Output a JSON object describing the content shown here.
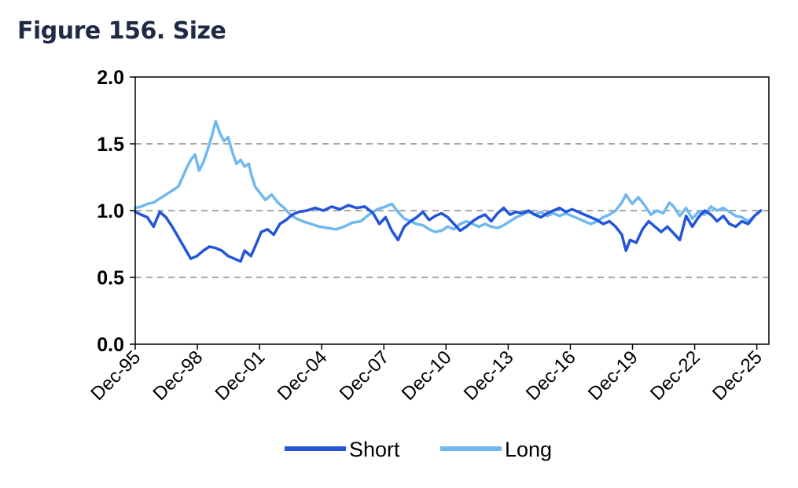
{
  "title": "Figure 156. Size",
  "chart_data": {
    "type": "line",
    "ylim": [
      0,
      2.0
    ],
    "yticks": [
      "0.0",
      "0.5",
      "1.0",
      "1.5",
      "2.0"
    ],
    "xlim": [
      1995.917,
      2026.5
    ],
    "xticks": [
      "Dec-95",
      "Dec-98",
      "Dec-01",
      "Dec-04",
      "Dec-07",
      "Dec-10",
      "Dec-13",
      "Dec-16",
      "Dec-19",
      "Dec-22",
      "Dec-25"
    ],
    "grid": "horizontal dashed",
    "legend_position": "bottom",
    "series": [
      {
        "name": "Short",
        "color": "#2255d9",
        "points": [
          [
            1995.92,
            0.99
          ],
          [
            1996.2,
            0.97
          ],
          [
            1996.5,
            0.95
          ],
          [
            1996.8,
            0.88
          ],
          [
            1997.1,
            0.99
          ],
          [
            1997.4,
            0.95
          ],
          [
            1997.7,
            0.88
          ],
          [
            1998.0,
            0.8
          ],
          [
            1998.3,
            0.72
          ],
          [
            1998.6,
            0.64
          ],
          [
            1998.9,
            0.66
          ],
          [
            1999.2,
            0.7
          ],
          [
            1999.5,
            0.73
          ],
          [
            1999.8,
            0.72
          ],
          [
            2000.1,
            0.7
          ],
          [
            2000.4,
            0.66
          ],
          [
            2000.7,
            0.64
          ],
          [
            2001.0,
            0.62
          ],
          [
            2001.2,
            0.7
          ],
          [
            2001.5,
            0.66
          ],
          [
            2001.7,
            0.73
          ],
          [
            2002.0,
            0.84
          ],
          [
            2002.3,
            0.86
          ],
          [
            2002.6,
            0.82
          ],
          [
            2002.9,
            0.9
          ],
          [
            2003.2,
            0.93
          ],
          [
            2003.5,
            0.97
          ],
          [
            2003.8,
            0.99
          ],
          [
            2004.2,
            1.0
          ],
          [
            2004.6,
            1.02
          ],
          [
            2005.0,
            1.0
          ],
          [
            2005.4,
            1.03
          ],
          [
            2005.8,
            1.01
          ],
          [
            2006.2,
            1.04
          ],
          [
            2006.6,
            1.02
          ],
          [
            2007.0,
            1.03
          ],
          [
            2007.4,
            0.98
          ],
          [
            2007.7,
            0.9
          ],
          [
            2008.0,
            0.95
          ],
          [
            2008.3,
            0.85
          ],
          [
            2008.6,
            0.78
          ],
          [
            2008.9,
            0.88
          ],
          [
            2009.2,
            0.92
          ],
          [
            2009.5,
            0.95
          ],
          [
            2009.8,
            0.99
          ],
          [
            2010.1,
            0.93
          ],
          [
            2010.4,
            0.96
          ],
          [
            2010.7,
            0.98
          ],
          [
            2011.0,
            0.95
          ],
          [
            2011.3,
            0.9
          ],
          [
            2011.6,
            0.85
          ],
          [
            2011.9,
            0.88
          ],
          [
            2012.2,
            0.92
          ],
          [
            2012.5,
            0.95
          ],
          [
            2012.8,
            0.97
          ],
          [
            2013.1,
            0.92
          ],
          [
            2013.4,
            0.98
          ],
          [
            2013.7,
            1.02
          ],
          [
            2014.0,
            0.97
          ],
          [
            2014.3,
            0.99
          ],
          [
            2014.6,
            0.98
          ],
          [
            2014.9,
            1.0
          ],
          [
            2015.2,
            0.97
          ],
          [
            2015.5,
            0.95
          ],
          [
            2015.8,
            0.98
          ],
          [
            2016.1,
            1.0
          ],
          [
            2016.4,
            1.02
          ],
          [
            2016.7,
            0.99
          ],
          [
            2017.0,
            1.01
          ],
          [
            2017.3,
            0.99
          ],
          [
            2017.6,
            0.97
          ],
          [
            2017.9,
            0.95
          ],
          [
            2018.2,
            0.93
          ],
          [
            2018.5,
            0.9
          ],
          [
            2018.8,
            0.92
          ],
          [
            2019.1,
            0.88
          ],
          [
            2019.4,
            0.82
          ],
          [
            2019.6,
            0.7
          ],
          [
            2019.8,
            0.78
          ],
          [
            2020.1,
            0.76
          ],
          [
            2020.4,
            0.86
          ],
          [
            2020.7,
            0.92
          ],
          [
            2021.0,
            0.88
          ],
          [
            2021.3,
            0.84
          ],
          [
            2021.6,
            0.88
          ],
          [
            2021.9,
            0.83
          ],
          [
            2022.2,
            0.78
          ],
          [
            2022.5,
            0.96
          ],
          [
            2022.8,
            0.88
          ],
          [
            2023.1,
            0.95
          ],
          [
            2023.4,
            1.0
          ],
          [
            2023.7,
            0.97
          ],
          [
            2024.0,
            0.92
          ],
          [
            2024.3,
            0.96
          ],
          [
            2024.6,
            0.9
          ],
          [
            2024.9,
            0.88
          ],
          [
            2025.2,
            0.92
          ],
          [
            2025.5,
            0.9
          ],
          [
            2025.8,
            0.96
          ],
          [
            2026.1,
            1.0
          ]
        ]
      },
      {
        "name": "Long",
        "color": "#70b8f0",
        "points": [
          [
            1995.92,
            1.02
          ],
          [
            1996.2,
            1.03
          ],
          [
            1996.5,
            1.05
          ],
          [
            1996.8,
            1.06
          ],
          [
            1997.1,
            1.09
          ],
          [
            1997.4,
            1.12
          ],
          [
            1997.7,
            1.15
          ],
          [
            1998.0,
            1.18
          ],
          [
            1998.2,
            1.25
          ],
          [
            1998.4,
            1.32
          ],
          [
            1998.6,
            1.38
          ],
          [
            1998.8,
            1.42
          ],
          [
            1999.0,
            1.3
          ],
          [
            1999.2,
            1.36
          ],
          [
            1999.4,
            1.45
          ],
          [
            1999.6,
            1.55
          ],
          [
            1999.8,
            1.67
          ],
          [
            2000.0,
            1.58
          ],
          [
            2000.2,
            1.52
          ],
          [
            2000.4,
            1.55
          ],
          [
            2000.6,
            1.44
          ],
          [
            2000.8,
            1.35
          ],
          [
            2001.0,
            1.38
          ],
          [
            2001.2,
            1.33
          ],
          [
            2001.4,
            1.35
          ],
          [
            2001.5,
            1.28
          ],
          [
            2001.7,
            1.18
          ],
          [
            2001.9,
            1.14
          ],
          [
            2002.2,
            1.08
          ],
          [
            2002.5,
            1.12
          ],
          [
            2002.8,
            1.06
          ],
          [
            2003.1,
            1.02
          ],
          [
            2003.4,
            0.97
          ],
          [
            2003.7,
            0.94
          ],
          [
            2004.0,
            0.92
          ],
          [
            2004.4,
            0.9
          ],
          [
            2004.8,
            0.88
          ],
          [
            2005.2,
            0.87
          ],
          [
            2005.6,
            0.86
          ],
          [
            2006.0,
            0.88
          ],
          [
            2006.4,
            0.91
          ],
          [
            2006.8,
            0.92
          ],
          [
            2007.2,
            0.97
          ],
          [
            2007.6,
            1.01
          ],
          [
            2008.0,
            1.03
          ],
          [
            2008.3,
            1.05
          ],
          [
            2008.6,
            0.99
          ],
          [
            2008.9,
            0.94
          ],
          [
            2009.2,
            0.92
          ],
          [
            2009.5,
            0.9
          ],
          [
            2009.8,
            0.89
          ],
          [
            2010.1,
            0.86
          ],
          [
            2010.4,
            0.84
          ],
          [
            2010.7,
            0.85
          ],
          [
            2011.0,
            0.88
          ],
          [
            2011.3,
            0.86
          ],
          [
            2011.6,
            0.9
          ],
          [
            2011.9,
            0.92
          ],
          [
            2012.2,
            0.9
          ],
          [
            2012.5,
            0.88
          ],
          [
            2012.8,
            0.9
          ],
          [
            2013.1,
            0.88
          ],
          [
            2013.4,
            0.87
          ],
          [
            2013.7,
            0.89
          ],
          [
            2014.0,
            0.92
          ],
          [
            2014.3,
            0.95
          ],
          [
            2014.6,
            0.97
          ],
          [
            2014.9,
            0.99
          ],
          [
            2015.2,
            0.97
          ],
          [
            2015.5,
            0.99
          ],
          [
            2015.8,
            0.96
          ],
          [
            2016.1,
            0.98
          ],
          [
            2016.4,
            0.96
          ],
          [
            2016.7,
            0.98
          ],
          [
            2017.0,
            0.96
          ],
          [
            2017.3,
            0.94
          ],
          [
            2017.6,
            0.92
          ],
          [
            2017.9,
            0.9
          ],
          [
            2018.2,
            0.92
          ],
          [
            2018.5,
            0.95
          ],
          [
            2018.8,
            0.97
          ],
          [
            2019.1,
            1.0
          ],
          [
            2019.4,
            1.06
          ],
          [
            2019.6,
            1.12
          ],
          [
            2019.9,
            1.05
          ],
          [
            2020.2,
            1.1
          ],
          [
            2020.5,
            1.04
          ],
          [
            2020.8,
            0.97
          ],
          [
            2021.1,
            1.0
          ],
          [
            2021.4,
            0.98
          ],
          [
            2021.7,
            1.06
          ],
          [
            2021.9,
            1.03
          ],
          [
            2022.2,
            0.96
          ],
          [
            2022.5,
            1.02
          ],
          [
            2022.8,
            0.94
          ],
          [
            2023.1,
            0.99
          ],
          [
            2023.4,
            0.97
          ],
          [
            2023.7,
            1.03
          ],
          [
            2024.0,
            1.0
          ],
          [
            2024.3,
            1.02
          ],
          [
            2024.6,
            0.99
          ],
          [
            2024.9,
            0.96
          ],
          [
            2025.2,
            0.95
          ],
          [
            2025.5,
            0.92
          ],
          [
            2025.8,
            0.96
          ],
          [
            2026.1,
            1.0
          ]
        ]
      }
    ]
  }
}
